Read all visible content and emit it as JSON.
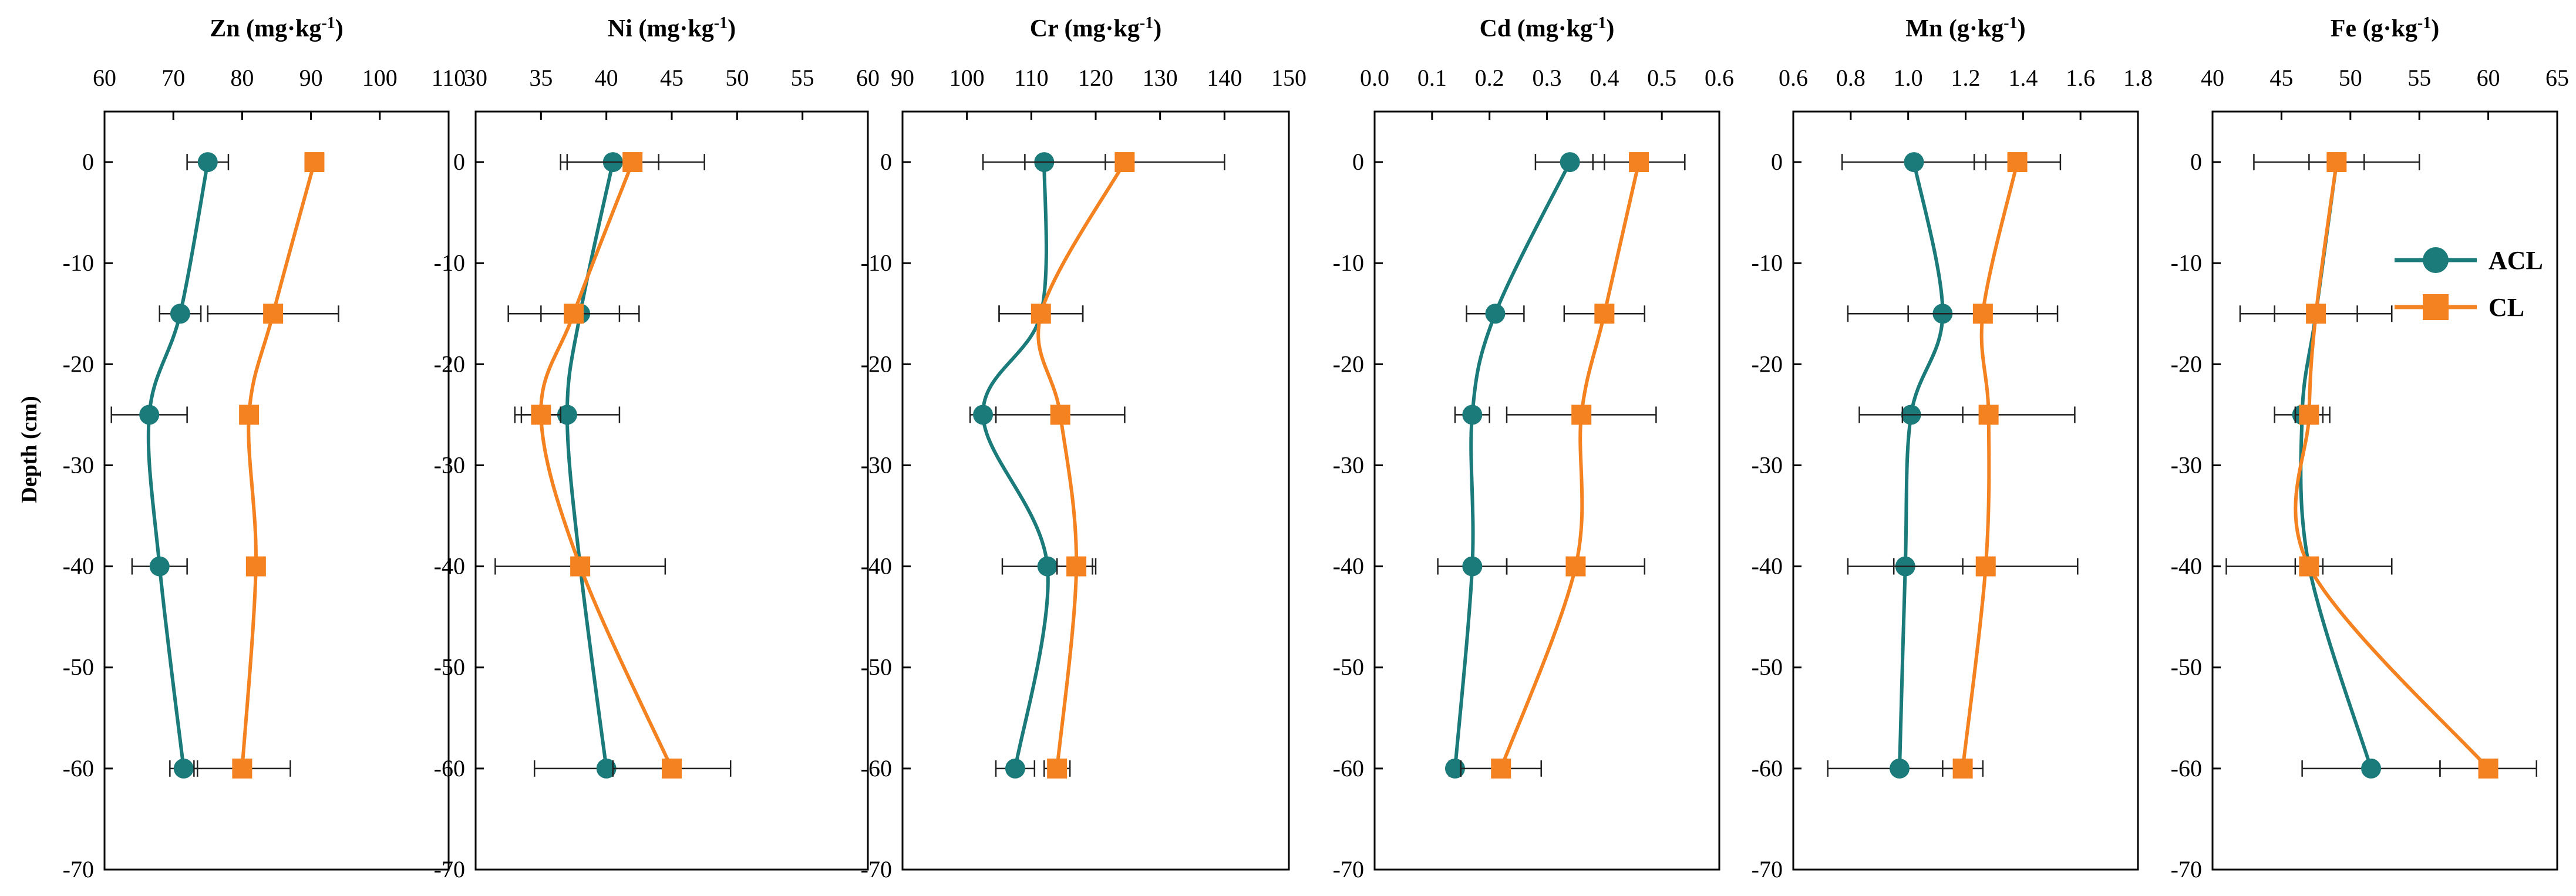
{
  "chart_data": {
    "type": "line",
    "depth_axis": {
      "label": "Depth (cm)",
      "range": [
        -70,
        5
      ],
      "ticks": [
        0,
        -10,
        -20,
        -30,
        -40,
        -50,
        -60,
        -70
      ],
      "tick_labels": [
        "0",
        "-10",
        "-20",
        "-30",
        "-40",
        "-50",
        "-60",
        "-70"
      ]
    },
    "depths": [
      0,
      -15,
      -25,
      -40,
      -60
    ],
    "legend": [
      {
        "name": "ACL",
        "color": "#1b7a7a",
        "marker": "circle"
      },
      {
        "name": "CL",
        "color": "#f58220",
        "marker": "square"
      }
    ],
    "panels": [
      {
        "id": "zn",
        "title_main": "Zn (mg·kg",
        "title_sup": "-1",
        "title_end": ")",
        "range": [
          60,
          110
        ],
        "ticks": [
          60,
          70,
          80,
          90,
          100,
          110
        ],
        "tick_labels": [
          "60",
          "70",
          "80",
          "90",
          "100",
          "110"
        ],
        "series": [
          {
            "name": "ACL",
            "values": [
              75,
              71,
              66.5,
              68,
              71.5
            ],
            "errors": [
              3,
              3,
              5.5,
              4,
              2
            ]
          },
          {
            "name": "CL",
            "values": [
              90.5,
              84.5,
              81,
              82,
              80
            ],
            "errors": [
              1,
              9.5,
              0,
              1,
              7
            ]
          }
        ]
      },
      {
        "id": "ni",
        "title_main": "Ni (mg·kg",
        "title_sup": "-1",
        "title_end": ")",
        "range": [
          30,
          60
        ],
        "ticks": [
          30,
          35,
          40,
          45,
          50,
          55,
          60
        ],
        "tick_labels": [
          "30",
          "35",
          "40",
          "45",
          "50",
          "55",
          "60"
        ],
        "series": [
          {
            "name": "ACL",
            "values": [
              40.5,
              38,
              37,
              38,
              40
            ],
            "errors": [
              3.5,
              3,
              4,
              6.5,
              5.5
            ]
          },
          {
            "name": "CL",
            "values": [
              42,
              37.5,
              35,
              38,
              45
            ],
            "errors": [
              5.5,
              5,
              1.5,
              0.5,
              4.5
            ]
          }
        ]
      },
      {
        "id": "cr",
        "title_main": "Cr (mg·kg",
        "title_sup": "-1",
        "title_end": ")",
        "range": [
          90,
          150
        ],
        "ticks": [
          90,
          100,
          110,
          120,
          130,
          140,
          150
        ],
        "tick_labels": [
          "90",
          "100",
          "110",
          "120",
          "130",
          "140",
          "150"
        ],
        "series": [
          {
            "name": "ACL",
            "values": [
              112,
              111.5,
              102.5,
              112.5,
              107.5
            ],
            "errors": [
              9.5,
              6.5,
              2,
              7,
              3
            ]
          },
          {
            "name": "CL",
            "values": [
              124.5,
              111.5,
              114.5,
              117,
              114
            ],
            "errors": [
              15.5,
              6.5,
              10,
              3,
              2
            ]
          }
        ]
      },
      {
        "id": "cd",
        "title_main": "Cd (mg·kg",
        "title_sup": "-1",
        "title_end": ")",
        "range": [
          0.0,
          0.6
        ],
        "ticks": [
          0.0,
          0.1,
          0.2,
          0.3,
          0.4,
          0.5,
          0.6
        ],
        "tick_labels": [
          "0.0",
          "0.1",
          "0.2",
          "0.3",
          "0.4",
          "0.5",
          "0.6"
        ],
        "series": [
          {
            "name": "ACL",
            "values": [
              0.34,
              0.21,
              0.17,
              0.17,
              0.14
            ],
            "errors": [
              0.06,
              0.05,
              0.03,
              0.06,
              0.01
            ]
          },
          {
            "name": "CL",
            "values": [
              0.46,
              0.4,
              0.36,
              0.35,
              0.22
            ],
            "errors": [
              0.08,
              0.07,
              0.13,
              0.12,
              0.07
            ]
          }
        ]
      },
      {
        "id": "mn",
        "title_main": "Mn (g·kg",
        "title_sup": "-1",
        "title_end": ")",
        "range": [
          0.6,
          1.8
        ],
        "ticks": [
          0.6,
          0.8,
          1.0,
          1.2,
          1.4,
          1.6,
          1.8
        ],
        "tick_labels": [
          "0.6",
          "0.8",
          "1.0",
          "1.2",
          "1.4",
          "1.6",
          "1.8"
        ],
        "series": [
          {
            "name": "ACL",
            "values": [
              1.02,
              1.12,
              1.01,
              0.99,
              0.97
            ],
            "errors": [
              0.25,
              0.33,
              0.18,
              0.2,
              0.25
            ]
          },
          {
            "name": "CL",
            "values": [
              1.38,
              1.26,
              1.28,
              1.27,
              1.19
            ],
            "errors": [
              0.15,
              0.26,
              0.3,
              0.32,
              0.07
            ]
          }
        ]
      },
      {
        "id": "fe",
        "title_main": "Fe (g·kg",
        "title_sup": "-1",
        "title_end": ")",
        "range": [
          40,
          65
        ],
        "ticks": [
          40,
          45,
          50,
          55,
          60,
          65
        ],
        "tick_labels": [
          "40",
          "45",
          "50",
          "55",
          "60",
          "65"
        ],
        "series": [
          {
            "name": "ACL",
            "values": [
              49,
              47.5,
              46.5,
              47,
              51.5
            ],
            "errors": [
              6,
              5.5,
              2,
              6,
              5
            ]
          },
          {
            "name": "CL",
            "values": [
              49,
              47.5,
              47,
              47,
              60
            ],
            "errors": [
              2,
              3,
              1,
              1,
              3.5
            ]
          }
        ]
      }
    ]
  }
}
